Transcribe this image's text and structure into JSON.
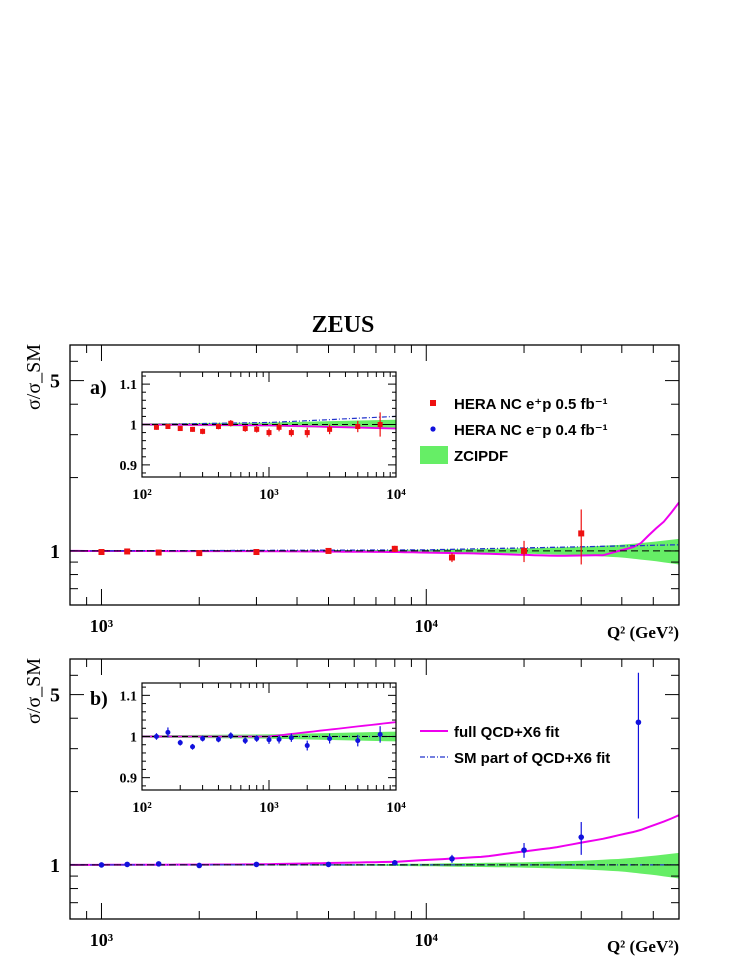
{
  "title": "ZEUS",
  "colors": {
    "ep": "#ee1111",
    "em": "#1111dd",
    "band": "#66ee66",
    "fit": "#ee00ee",
    "sm": "#2233cc"
  },
  "chart_data": [
    {
      "type": "scatter",
      "panel_label": "a)",
      "ylabel": "σ/σ_SM",
      "xlabel": "Q² (GeV²)",
      "x_scale": "log",
      "y_scale": "log",
      "xlim": [
        800,
        60000
      ],
      "ylim": [
        0.6,
        7
      ],
      "x_ticks": [
        1000,
        10000
      ],
      "x_tick_labels": [
        "10³",
        "10⁴"
      ],
      "y_ticks": [
        1,
        5
      ],
      "y_tick_labels": [
        "1",
        "5"
      ],
      "legend": [
        {
          "name": "HERA NC  e⁺p  0.5 fb⁻¹",
          "marker": "square",
          "color": "ep"
        },
        {
          "name": "HERA NC  e⁻p  0.4 fb⁻¹",
          "marker": "circle",
          "color": "em"
        },
        {
          "name": "ZCIPDF",
          "marker": "band",
          "color": "band"
        }
      ],
      "series": [
        {
          "name": "HERA NC  e⁺p  0.5 fb⁻¹",
          "marker": "square",
          "points": [
            {
              "x": 1000,
              "y": 0.99,
              "err": 0.01
            },
            {
              "x": 1200,
              "y": 0.995,
              "err": 0.01
            },
            {
              "x": 1500,
              "y": 0.985,
              "err": 0.01
            },
            {
              "x": 2000,
              "y": 0.98,
              "err": 0.01
            },
            {
              "x": 3000,
              "y": 0.99,
              "err": 0.01
            },
            {
              "x": 5000,
              "y": 1.0,
              "err": 0.012
            },
            {
              "x": 8000,
              "y": 1.02,
              "err": 0.03
            },
            {
              "x": 12000,
              "y": 0.94,
              "err": 0.04
            },
            {
              "x": 20000,
              "y": 1.0,
              "err": 0.1
            },
            {
              "x": 30000,
              "y": 1.18,
              "err": 0.3
            }
          ]
        }
      ],
      "band": {
        "name": "ZCIPDF",
        "x": [
          800,
          5000,
          10000,
          20000,
          30000,
          40000,
          50000,
          60000
        ],
        "halfwidth": [
          0.003,
          0.006,
          0.012,
          0.025,
          0.04,
          0.06,
          0.09,
          0.12
        ]
      },
      "curves": [
        {
          "name": "full QCD+X6 fit",
          "style": "solid",
          "x": [
            800,
            3000,
            8000,
            15000,
            25000,
            35000,
            45000,
            55000,
            60000
          ],
          "y": [
            1.0,
            0.998,
            0.99,
            0.975,
            0.955,
            0.96,
            1.05,
            1.35,
            1.58
          ]
        },
        {
          "name": "SM part of QCD+X6 fit",
          "style": "dashdot",
          "x": [
            800,
            10000,
            30000,
            60000
          ],
          "y": [
            1.0,
            1.01,
            1.04,
            1.06
          ]
        },
        {
          "name": "SM",
          "style": "dashed",
          "x": [
            800,
            60000
          ],
          "y": [
            1.0,
            1.0
          ]
        }
      ],
      "inset": {
        "xlim": [
          100,
          10000
        ],
        "ylim": [
          0.87,
          1.13
        ],
        "x_tick_labels": [
          "10²",
          "10³",
          "10⁴"
        ],
        "y_ticks": [
          0.9,
          1.0,
          1.1
        ],
        "y_tick_labels": [
          "0.9",
          "1",
          "1.1"
        ],
        "points": [
          {
            "x": 130,
            "y": 0.993,
            "err": 0.006
          },
          {
            "x": 160,
            "y": 0.995,
            "err": 0.006
          },
          {
            "x": 200,
            "y": 0.99,
            "err": 0.006
          },
          {
            "x": 250,
            "y": 0.988,
            "err": 0.006
          },
          {
            "x": 300,
            "y": 0.983,
            "err": 0.007
          },
          {
            "x": 400,
            "y": 0.995,
            "err": 0.007
          },
          {
            "x": 500,
            "y": 1.003,
            "err": 0.008
          },
          {
            "x": 650,
            "y": 0.99,
            "err": 0.008
          },
          {
            "x": 800,
            "y": 0.988,
            "err": 0.008
          },
          {
            "x": 1000,
            "y": 0.98,
            "err": 0.01
          },
          {
            "x": 1200,
            "y": 0.993,
            "err": 0.01
          },
          {
            "x": 1500,
            "y": 0.98,
            "err": 0.01
          },
          {
            "x": 2000,
            "y": 0.98,
            "err": 0.012
          },
          {
            "x": 3000,
            "y": 0.988,
            "err": 0.012
          },
          {
            "x": 5000,
            "y": 0.995,
            "err": 0.014
          },
          {
            "x": 7500,
            "y": 1.0,
            "err": 0.03
          }
        ],
        "band_halfwidth": [
          0.003,
          0.005,
          0.012
        ],
        "curve_fit": [
          1.0,
          0.998,
          0.99
        ],
        "curve_sm": [
          1.0,
          1.005,
          1.02
        ]
      }
    },
    {
      "type": "scatter",
      "panel_label": "b)",
      "ylabel": "σ/σ_SM",
      "xlabel": "Q² (GeV²)",
      "x_scale": "log",
      "y_scale": "log",
      "xlim": [
        800,
        60000
      ],
      "ylim": [
        0.6,
        7
      ],
      "x_ticks": [
        1000,
        10000
      ],
      "x_tick_labels": [
        "10³",
        "10⁴"
      ],
      "y_ticks": [
        1,
        5
      ],
      "y_tick_labels": [
        "1",
        "5"
      ],
      "legend": [
        {
          "name": "full QCD+X6 fit",
          "marker": "line",
          "color": "fit"
        },
        {
          "name": "SM part of QCD+X6 fit",
          "marker": "dashdot",
          "color": "sm"
        }
      ],
      "series": [
        {
          "name": "HERA NC  e⁻p  0.4 fb⁻¹",
          "marker": "circle",
          "points": [
            {
              "x": 1000,
              "y": 1.0,
              "err": 0.01
            },
            {
              "x": 1200,
              "y": 1.005,
              "err": 0.01
            },
            {
              "x": 1500,
              "y": 1.01,
              "err": 0.01
            },
            {
              "x": 2000,
              "y": 0.995,
              "err": 0.01
            },
            {
              "x": 3000,
              "y": 1.005,
              "err": 0.01
            },
            {
              "x": 5000,
              "y": 1.005,
              "err": 0.012
            },
            {
              "x": 8000,
              "y": 1.02,
              "err": 0.025
            },
            {
              "x": 12000,
              "y": 1.06,
              "err": 0.04
            },
            {
              "x": 20000,
              "y": 1.15,
              "err": 0.08
            },
            {
              "x": 30000,
              "y": 1.3,
              "err": 0.2
            },
            {
              "x": 45000,
              "y": 3.85,
              "err": 2.3
            }
          ]
        }
      ],
      "band": {
        "name": "ZCIPDF",
        "x": [
          800,
          5000,
          10000,
          20000,
          30000,
          40000,
          50000,
          60000
        ],
        "halfwidth": [
          0.003,
          0.006,
          0.012,
          0.025,
          0.04,
          0.06,
          0.09,
          0.12
        ]
      },
      "curves": [
        {
          "name": "full QCD+X6 fit",
          "style": "solid",
          "x": [
            800,
            3000,
            8000,
            15000,
            25000,
            35000,
            45000,
            55000,
            60000
          ],
          "y": [
            1.0,
            1.005,
            1.03,
            1.08,
            1.18,
            1.28,
            1.38,
            1.52,
            1.6
          ]
        },
        {
          "name": "SM part of QCD+X6 fit",
          "style": "dashdot",
          "x": [
            800,
            60000
          ],
          "y": [
            1.0,
            1.0
          ]
        },
        {
          "name": "SM",
          "style": "dashed",
          "x": [
            800,
            60000
          ],
          "y": [
            1.0,
            1.0
          ]
        }
      ],
      "inset": {
        "xlim": [
          100,
          10000
        ],
        "ylim": [
          0.87,
          1.13
        ],
        "x_tick_labels": [
          "10²",
          "10³",
          "10⁴"
        ],
        "y_ticks": [
          0.9,
          1.0,
          1.1
        ],
        "y_tick_labels": [
          "0.9",
          "1",
          "1.1"
        ],
        "points": [
          {
            "x": 130,
            "y": 1.0,
            "err": 0.008
          },
          {
            "x": 160,
            "y": 1.01,
            "err": 0.012
          },
          {
            "x": 200,
            "y": 0.985,
            "err": 0.007
          },
          {
            "x": 250,
            "y": 0.975,
            "err": 0.007
          },
          {
            "x": 300,
            "y": 0.995,
            "err": 0.007
          },
          {
            "x": 400,
            "y": 0.993,
            "err": 0.007
          },
          {
            "x": 500,
            "y": 1.002,
            "err": 0.008
          },
          {
            "x": 650,
            "y": 0.99,
            "err": 0.008
          },
          {
            "x": 800,
            "y": 0.995,
            "err": 0.008
          },
          {
            "x": 1000,
            "y": 0.992,
            "err": 0.01
          },
          {
            "x": 1200,
            "y": 0.993,
            "err": 0.01
          },
          {
            "x": 1500,
            "y": 0.997,
            "err": 0.01
          },
          {
            "x": 2000,
            "y": 0.978,
            "err": 0.012
          },
          {
            "x": 3000,
            "y": 0.995,
            "err": 0.012
          },
          {
            "x": 5000,
            "y": 0.99,
            "err": 0.014
          },
          {
            "x": 7500,
            "y": 1.005,
            "err": 0.02
          }
        ],
        "band_halfwidth": [
          0.003,
          0.005,
          0.012
        ],
        "curve_fit": [
          1.0,
          1.0,
          1.035
        ],
        "curve_sm": [
          1.0,
          1.0,
          1.0
        ]
      }
    }
  ]
}
